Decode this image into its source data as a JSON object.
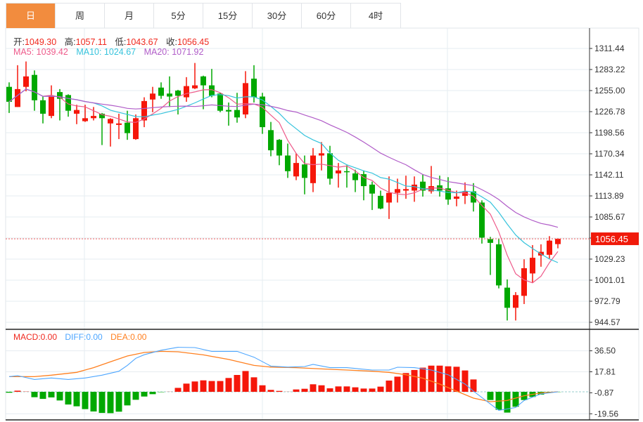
{
  "tabs": [
    {
      "label": "日",
      "active": true
    },
    {
      "label": "周"
    },
    {
      "label": "月"
    },
    {
      "label": "5分"
    },
    {
      "label": "15分"
    },
    {
      "label": "30分"
    },
    {
      "label": "60分"
    },
    {
      "label": "4时"
    }
  ],
  "ohlc_info": {
    "open_label": "开:",
    "open": "1049.30",
    "high_label": "高:",
    "high": "1057.11",
    "low_label": "低:",
    "low": "1043.67",
    "close_label": "收:",
    "close": "1056.45"
  },
  "ma_info": {
    "ma5": "MA5: 1039.42",
    "ma10": "MA10: 1024.67",
    "ma20": "MA20: 1071.92"
  },
  "macd_info": {
    "macd": "MACD:0.00",
    "diff": "DIFF:0.00",
    "dea": "DEA:0.00"
  },
  "colors": {
    "up": "#f5170a",
    "down": "#00a800",
    "ma5": "#ee5a8a",
    "ma10": "#35c3dc",
    "ma20": "#b05cc8",
    "diff": "#4da6ff",
    "dea": "#ff7f1e",
    "grid": "#e6ecf0",
    "active_tab": "#f28c3e"
  },
  "chart_data": {
    "type": "candlestick",
    "price_axis": {
      "ticks": [
        "1311.44",
        "1283.22",
        "1255.00",
        "1226.78",
        "1198.56",
        "1170.34",
        "1142.11",
        "1113.89",
        "1085.67",
        "1056.45",
        "1029.23",
        "1001.01",
        "972.79",
        "944.57"
      ],
      "range": [
        944.57,
        1311.44
      ],
      "last_price": "1056.45"
    },
    "candles": [
      [
        1260,
        1266,
        1225,
        1240
      ],
      [
        1233,
        1289,
        1233,
        1257
      ],
      [
        1260,
        1294,
        1254,
        1274
      ],
      [
        1276,
        1282,
        1228,
        1242
      ],
      [
        1242,
        1247,
        1211,
        1224
      ],
      [
        1221,
        1262,
        1218,
        1247
      ],
      [
        1253,
        1257,
        1215,
        1244
      ],
      [
        1249,
        1250,
        1220,
        1228
      ],
      [
        1224,
        1236,
        1210,
        1229
      ],
      [
        1214,
        1236,
        1213,
        1218
      ],
      [
        1218,
        1233,
        1215,
        1221
      ],
      [
        1224,
        1225,
        1182,
        1218
      ],
      [
        1211,
        1218,
        1180,
        1217
      ],
      [
        1209,
        1224,
        1190,
        1211
      ],
      [
        1212,
        1228,
        1189,
        1198
      ],
      [
        1190,
        1223,
        1189,
        1218
      ],
      [
        1215,
        1246,
        1206,
        1241
      ],
      [
        1243,
        1260,
        1226,
        1251
      ],
      [
        1259,
        1266,
        1244,
        1248
      ],
      [
        1251,
        1274,
        1233,
        1247
      ],
      [
        1255,
        1256,
        1223,
        1248
      ],
      [
        1246,
        1273,
        1240,
        1261
      ],
      [
        1258,
        1292,
        1257,
        1262
      ],
      [
        1274,
        1275,
        1230,
        1262
      ],
      [
        1262,
        1284,
        1246,
        1248
      ],
      [
        1251,
        1252,
        1226,
        1228
      ],
      [
        1229,
        1239,
        1208,
        1227
      ],
      [
        1229,
        1252,
        1212,
        1219
      ],
      [
        1223,
        1281,
        1218,
        1265
      ],
      [
        1271,
        1289,
        1239,
        1246
      ],
      [
        1247,
        1252,
        1197,
        1206
      ],
      [
        1202,
        1213,
        1167,
        1175
      ],
      [
        1189,
        1190,
        1155,
        1168
      ],
      [
        1168,
        1184,
        1138,
        1147
      ],
      [
        1140,
        1171,
        1135,
        1158
      ],
      [
        1156,
        1168,
        1116,
        1138
      ],
      [
        1131,
        1178,
        1119,
        1168
      ],
      [
        1168,
        1186,
        1148,
        1171
      ],
      [
        1171,
        1181,
        1129,
        1137
      ],
      [
        1144,
        1158,
        1125,
        1148
      ],
      [
        1147,
        1155,
        1125,
        1146
      ],
      [
        1144,
        1149,
        1119,
        1135
      ],
      [
        1143,
        1148,
        1108,
        1127
      ],
      [
        1129,
        1133,
        1095,
        1117
      ],
      [
        1114,
        1121,
        1096,
        1097
      ],
      [
        1105,
        1140,
        1083,
        1118
      ],
      [
        1118,
        1137,
        1105,
        1123
      ],
      [
        1121,
        1141,
        1110,
        1123
      ],
      [
        1121,
        1140,
        1106,
        1129
      ],
      [
        1133,
        1143,
        1113,
        1121
      ],
      [
        1120,
        1154,
        1117,
        1127
      ],
      [
        1128,
        1141,
        1113,
        1121
      ],
      [
        1124,
        1139,
        1102,
        1109
      ],
      [
        1110,
        1121,
        1100,
        1113
      ],
      [
        1114,
        1132,
        1103,
        1120
      ],
      [
        1120,
        1131,
        1093,
        1105
      ],
      [
        1105,
        1108,
        1050,
        1058
      ],
      [
        1056,
        1059,
        1008,
        1051
      ],
      [
        1049,
        1056,
        990,
        994
      ],
      [
        991,
        1002,
        947,
        964
      ],
      [
        964,
        985,
        947,
        981
      ],
      [
        980,
        1029,
        969,
        1017
      ],
      [
        1010,
        1048,
        998,
        1031
      ],
      [
        1034,
        1049,
        1019,
        1039
      ],
      [
        1035,
        1060,
        1030,
        1054
      ],
      [
        1049.3,
        1057.11,
        1043.67,
        1056.45
      ]
    ],
    "ma_periods": [
      5,
      10,
      20
    ],
    "macd_axis": {
      "ticks": [
        "36.50",
        "17.81",
        "-0.87",
        "-19.56"
      ],
      "tick_values": [
        36.5,
        17.81,
        -0.87,
        -19.56
      ]
    },
    "macd_hist": [
      -0.8,
      1,
      0.2,
      -4.8,
      -6.3,
      -5,
      -7.7,
      -11.3,
      -12.9,
      -15.4,
      -17.5,
      -18.8,
      -19,
      -17.7,
      -12.1,
      -7.1,
      -4.2,
      -2.1,
      -0.3,
      0.1,
      3.5,
      7.3,
      9.2,
      10.2,
      9.6,
      9.6,
      12.3,
      15,
      18.5,
      12.9,
      5.8,
      1.7,
      0.8,
      0.1,
      2.1,
      2.7,
      6.7,
      5.8,
      3.1,
      4.8,
      4.8,
      4,
      2.9,
      2.9,
      4.6,
      10,
      13.5,
      16.7,
      19.4,
      21.5,
      23.3,
      23.3,
      22.7,
      22.3,
      19,
      11,
      0,
      -7.3,
      -16,
      -18.5,
      -13.3,
      -7.3,
      -4.6,
      -2.5,
      -0.8,
      -0.2
    ],
    "dea": [
      [
        0,
        13.5
      ],
      [
        3,
        13.5
      ],
      [
        5,
        14.8
      ],
      [
        8,
        17.3
      ],
      [
        10,
        21.5
      ],
      [
        12,
        26.7
      ],
      [
        14,
        31.9
      ],
      [
        16,
        35
      ],
      [
        18,
        36
      ],
      [
        20,
        35.6
      ],
      [
        23,
        32.9
      ],
      [
        26,
        28.8
      ],
      [
        29,
        23.5
      ],
      [
        31,
        22
      ],
      [
        34,
        21.5
      ],
      [
        37,
        20.4
      ],
      [
        40,
        19.4
      ],
      [
        43,
        18.3
      ],
      [
        45,
        17.3
      ],
      [
        47,
        15.2
      ],
      [
        49,
        12.1
      ],
      [
        51,
        6.9
      ],
      [
        53,
        0.6
      ],
      [
        55,
        -5.6
      ],
      [
        57,
        -8.8
      ],
      [
        59,
        -7.7
      ],
      [
        61,
        -3.5
      ],
      [
        63,
        -1
      ],
      [
        65,
        0
      ]
    ],
    "diff": [
      [
        0,
        13.5
      ],
      [
        1,
        14.4
      ],
      [
        3,
        11
      ],
      [
        5,
        12.3
      ],
      [
        7,
        11
      ],
      [
        9,
        12.3
      ],
      [
        11,
        14.8
      ],
      [
        13,
        18.3
      ],
      [
        14,
        23.5
      ],
      [
        15,
        29.8
      ],
      [
        16,
        33
      ],
      [
        18,
        37
      ],
      [
        20,
        39.6
      ],
      [
        22,
        39.4
      ],
      [
        24,
        36
      ],
      [
        27,
        36
      ],
      [
        29,
        30.8
      ],
      [
        31,
        22.9
      ],
      [
        33,
        22
      ],
      [
        35,
        22.5
      ],
      [
        36,
        24.4
      ],
      [
        38,
        21.5
      ],
      [
        40,
        21.5
      ],
      [
        43,
        19.4
      ],
      [
        45,
        19.4
      ],
      [
        46,
        21.9
      ],
      [
        48,
        21.5
      ],
      [
        50,
        19.4
      ],
      [
        52,
        15.2
      ],
      [
        54,
        6.9
      ],
      [
        55,
        0.6
      ],
      [
        57,
        -10.8
      ],
      [
        58,
        -16.5
      ],
      [
        60,
        -14
      ],
      [
        61,
        -7.7
      ],
      [
        63,
        -1.9
      ],
      [
        65,
        0
      ]
    ]
  }
}
